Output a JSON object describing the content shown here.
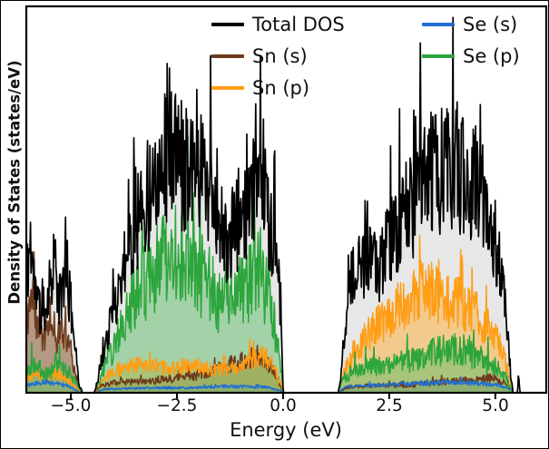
{
  "chart_data": {
    "type": "area",
    "title": "",
    "xlabel": "Energy (eV)",
    "ylabel": "Density of States (states/eV)",
    "xlim": [
      -6.05,
      6.2
    ],
    "ylim": [
      0,
      1.05
    ],
    "grid": false,
    "legend_position": "upper center, two columns, no frame",
    "band_gap_ev": [
      0.0,
      1.3
    ],
    "xticks": [
      {
        "value": -5.0,
        "label": "−5.0"
      },
      {
        "value": -2.5,
        "label": "−2.5"
      },
      {
        "value": 0.0,
        "label": "0.0"
      },
      {
        "value": 2.5,
        "label": "2.5"
      },
      {
        "value": 5.0,
        "label": "5.0"
      }
    ],
    "series": [
      {
        "name": "Total DOS",
        "color": "#000000",
        "fill": "#e7e7e7",
        "fill_opacity": 1,
        "line_width": 1.7,
        "noise": 0.3,
        "spike_prob": 0.07,
        "spike_gain": 1.35,
        "seed": 11,
        "z": 10,
        "points": [
          [
            -6.05,
            0.3
          ],
          [
            -5.95,
            0.42
          ],
          [
            -5.85,
            0.28
          ],
          [
            -5.7,
            0.2
          ],
          [
            -5.55,
            0.26
          ],
          [
            -5.4,
            0.38
          ],
          [
            -5.28,
            0.24
          ],
          [
            -5.15,
            0.32
          ],
          [
            -5.0,
            0.24
          ],
          [
            -4.9,
            0.12
          ],
          [
            -4.8,
            0.02
          ],
          [
            -4.72,
            0.0
          ],
          [
            -4.45,
            0.0
          ],
          [
            -4.38,
            0.03
          ],
          [
            -4.25,
            0.1
          ],
          [
            -4.05,
            0.2
          ],
          [
            -3.85,
            0.3
          ],
          [
            -3.65,
            0.4
          ],
          [
            -3.45,
            0.47
          ],
          [
            -3.25,
            0.52
          ],
          [
            -3.05,
            0.58
          ],
          [
            -2.85,
            0.62
          ],
          [
            -2.65,
            0.7
          ],
          [
            -2.55,
            0.64
          ],
          [
            -2.35,
            0.62
          ],
          [
            -2.15,
            0.66
          ],
          [
            -1.95,
            0.63
          ],
          [
            -1.75,
            0.58
          ],
          [
            -1.55,
            0.52
          ],
          [
            -1.38,
            0.4
          ],
          [
            -1.22,
            0.42
          ],
          [
            -1.05,
            0.48
          ],
          [
            -0.85,
            0.46
          ],
          [
            -0.65,
            0.56
          ],
          [
            -0.5,
            0.64
          ],
          [
            -0.38,
            0.5
          ],
          [
            -0.22,
            0.4
          ],
          [
            -0.08,
            0.26
          ],
          [
            -0.01,
            0.06
          ],
          [
            0.0,
            0.0
          ],
          [
            1.3,
            0.0
          ],
          [
            1.38,
            0.06
          ],
          [
            1.48,
            0.22
          ],
          [
            1.6,
            0.3
          ],
          [
            1.8,
            0.33
          ],
          [
            2.0,
            0.35
          ],
          [
            2.2,
            0.34
          ],
          [
            2.4,
            0.38
          ],
          [
            2.6,
            0.43
          ],
          [
            2.8,
            0.47
          ],
          [
            3.0,
            0.51
          ],
          [
            3.2,
            0.55
          ],
          [
            3.4,
            0.58
          ],
          [
            3.6,
            0.6
          ],
          [
            3.8,
            0.61
          ],
          [
            4.0,
            0.62
          ],
          [
            4.2,
            0.6
          ],
          [
            4.4,
            0.58
          ],
          [
            4.6,
            0.55
          ],
          [
            4.8,
            0.5
          ],
          [
            5.0,
            0.42
          ],
          [
            5.15,
            0.32
          ],
          [
            5.28,
            0.16
          ],
          [
            5.38,
            0.03
          ],
          [
            5.42,
            0.0
          ],
          [
            5.52,
            0.0
          ],
          [
            5.55,
            0.05
          ],
          [
            5.58,
            0.0
          ],
          [
            6.2,
            0.0
          ]
        ]
      },
      {
        "name": "Sn (s)",
        "color": "#6e3a1c",
        "fill": "#8a5a33",
        "fill_opacity": 0.55,
        "line_width": 1.5,
        "noise": 0.3,
        "spike_prob": 0.05,
        "spike_gain": 1.3,
        "seed": 45,
        "z": 1,
        "points": [
          [
            -6.05,
            0.2
          ],
          [
            -5.92,
            0.27
          ],
          [
            -5.78,
            0.19
          ],
          [
            -5.62,
            0.15
          ],
          [
            -5.48,
            0.21
          ],
          [
            -5.32,
            0.15
          ],
          [
            -5.15,
            0.17
          ],
          [
            -5.0,
            0.11
          ],
          [
            -4.86,
            0.04
          ],
          [
            -4.76,
            0.0
          ],
          [
            -4.45,
            0.0
          ],
          [
            -4.3,
            0.02
          ],
          [
            -3.8,
            0.03
          ],
          [
            -3.2,
            0.03
          ],
          [
            -2.6,
            0.04
          ],
          [
            -2.0,
            0.05
          ],
          [
            -1.6,
            0.06
          ],
          [
            -1.2,
            0.08
          ],
          [
            -0.9,
            0.09
          ],
          [
            -0.6,
            0.1
          ],
          [
            -0.35,
            0.08
          ],
          [
            -0.1,
            0.03
          ],
          [
            0.0,
            0.0
          ],
          [
            1.3,
            0.0
          ],
          [
            1.5,
            0.015
          ],
          [
            2.2,
            0.02
          ],
          [
            3.0,
            0.02
          ],
          [
            3.8,
            0.03
          ],
          [
            4.4,
            0.035
          ],
          [
            4.9,
            0.04
          ],
          [
            5.2,
            0.025
          ],
          [
            5.38,
            0.01
          ],
          [
            5.42,
            0.0
          ],
          [
            6.2,
            0.0
          ]
        ]
      },
      {
        "name": "Sn (p)",
        "color": "#ff9d14",
        "fill": "#ffae33",
        "fill_opacity": 0.5,
        "line_width": 1.5,
        "noise": 0.3,
        "spike_prob": 0.05,
        "spike_gain": 1.35,
        "seed": 33,
        "z": 2,
        "points": [
          [
            -6.05,
            0.04
          ],
          [
            -5.8,
            0.05
          ],
          [
            -5.3,
            0.05
          ],
          [
            -5.0,
            0.03
          ],
          [
            -4.85,
            0.01
          ],
          [
            -4.75,
            0.0
          ],
          [
            -4.45,
            0.0
          ],
          [
            -4.35,
            0.02
          ],
          [
            -4.05,
            0.05
          ],
          [
            -3.6,
            0.075
          ],
          [
            -3.1,
            0.07
          ],
          [
            -2.6,
            0.065
          ],
          [
            -2.1,
            0.075
          ],
          [
            -1.6,
            0.06
          ],
          [
            -1.1,
            0.065
          ],
          [
            -0.7,
            0.09
          ],
          [
            -0.45,
            0.1
          ],
          [
            -0.2,
            0.07
          ],
          [
            -0.04,
            0.02
          ],
          [
            0.0,
            0.0
          ],
          [
            1.3,
            0.0
          ],
          [
            1.42,
            0.05
          ],
          [
            1.65,
            0.11
          ],
          [
            1.95,
            0.15
          ],
          [
            2.3,
            0.19
          ],
          [
            2.7,
            0.23
          ],
          [
            3.0,
            0.26
          ],
          [
            3.3,
            0.29
          ],
          [
            3.6,
            0.27
          ],
          [
            3.9,
            0.25
          ],
          [
            4.2,
            0.24
          ],
          [
            4.5,
            0.22
          ],
          [
            4.8,
            0.18
          ],
          [
            5.05,
            0.14
          ],
          [
            5.25,
            0.08
          ],
          [
            5.38,
            0.02
          ],
          [
            5.42,
            0.0
          ],
          [
            6.2,
            0.0
          ]
        ]
      },
      {
        "name": "Se (s)",
        "color": "#1f6fd2",
        "fill": "#5b9bd5",
        "fill_opacity": 0.25,
        "line_width": 1.5,
        "noise": 0.25,
        "spike_prob": 0.03,
        "spike_gain": 1.3,
        "seed": 60,
        "z": 3,
        "points": [
          [
            -6.05,
            0.02
          ],
          [
            -5.6,
            0.03
          ],
          [
            -5.1,
            0.02
          ],
          [
            -4.85,
            0.005
          ],
          [
            -4.75,
            0.0
          ],
          [
            -4.45,
            0.0
          ],
          [
            -4.2,
            0.01
          ],
          [
            -3.2,
            0.013
          ],
          [
            -2.2,
            0.013
          ],
          [
            -1.2,
            0.018
          ],
          [
            -0.4,
            0.015
          ],
          [
            -0.05,
            0.005
          ],
          [
            0.0,
            0.0
          ],
          [
            1.3,
            0.0
          ],
          [
            1.5,
            0.018
          ],
          [
            2.5,
            0.022
          ],
          [
            3.5,
            0.027
          ],
          [
            4.5,
            0.027
          ],
          [
            5.1,
            0.02
          ],
          [
            5.38,
            0.008
          ],
          [
            5.42,
            0.0
          ],
          [
            6.2,
            0.0
          ]
        ]
      },
      {
        "name": "Se (p)",
        "color": "#2ca53c",
        "fill": "#5fbe6a",
        "fill_opacity": 0.5,
        "line_width": 1.5,
        "noise": 0.38,
        "spike_prob": 0.06,
        "spike_gain": 1.45,
        "seed": 21,
        "z": 4,
        "points": [
          [
            -6.05,
            0.05
          ],
          [
            -5.9,
            0.08
          ],
          [
            -5.6,
            0.05
          ],
          [
            -5.3,
            0.07
          ],
          [
            -5.0,
            0.05
          ],
          [
            -4.85,
            0.02
          ],
          [
            -4.75,
            0.0
          ],
          [
            -4.45,
            0.0
          ],
          [
            -4.35,
            0.03
          ],
          [
            -4.1,
            0.1
          ],
          [
            -3.85,
            0.17
          ],
          [
            -3.6,
            0.24
          ],
          [
            -3.35,
            0.29
          ],
          [
            -3.1,
            0.33
          ],
          [
            -2.85,
            0.36
          ],
          [
            -2.6,
            0.38
          ],
          [
            -2.35,
            0.36
          ],
          [
            -2.1,
            0.34
          ],
          [
            -1.85,
            0.32
          ],
          [
            -1.6,
            0.28
          ],
          [
            -1.42,
            0.23
          ],
          [
            -1.25,
            0.25
          ],
          [
            -1.05,
            0.28
          ],
          [
            -0.85,
            0.28
          ],
          [
            -0.65,
            0.32
          ],
          [
            -0.5,
            0.33
          ],
          [
            -0.35,
            0.26
          ],
          [
            -0.18,
            0.16
          ],
          [
            -0.04,
            0.06
          ],
          [
            0.0,
            0.0
          ],
          [
            1.3,
            0.0
          ],
          [
            1.42,
            0.04
          ],
          [
            1.65,
            0.06
          ],
          [
            2.1,
            0.07
          ],
          [
            2.6,
            0.08
          ],
          [
            3.1,
            0.09
          ],
          [
            3.5,
            0.11
          ],
          [
            3.9,
            0.12
          ],
          [
            4.3,
            0.11
          ],
          [
            4.7,
            0.09
          ],
          [
            5.0,
            0.07
          ],
          [
            5.25,
            0.04
          ],
          [
            5.4,
            0.0
          ],
          [
            6.2,
            0.0
          ]
        ]
      }
    ]
  }
}
